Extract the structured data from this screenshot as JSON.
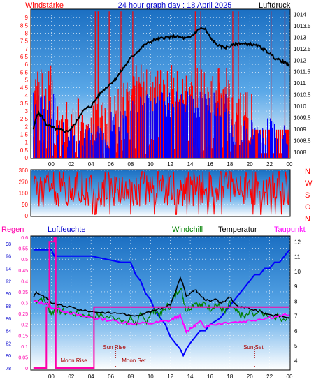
{
  "header": {
    "left_label": "Windstärke",
    "title": "24 hour graph day : 18 April 2025",
    "right_label": "Luftdruck"
  },
  "colors": {
    "wind": "#ff0000",
    "gust": "#0000ff",
    "pressure": "#000000",
    "rain": "#ff00aa",
    "humidity": "#0000ff",
    "windchill": "#008000",
    "temperature": "#000000",
    "dewpoint": "#ff00ff",
    "sky_top": "#1b6fc2",
    "sky_bottom": "#ffffff"
  },
  "chart_data": [
    {
      "type": "bar+line",
      "title": "24 hour graph day : 18 April 2025",
      "left_axis_label": "Windstärke",
      "right_axis_label": "Luftdruck",
      "x_ticks": [
        "00",
        "02",
        "04",
        "06",
        "08",
        "10",
        "12",
        "14",
        "16",
        "18",
        "20",
        "22",
        "00"
      ],
      "left_ticks": [
        "0",
        "0.5",
        "1",
        "1.5",
        "2",
        "2.5",
        "3",
        "3.5",
        "4",
        "4.5",
        "5",
        "5.5",
        "6",
        "6.5",
        "7",
        "7.5",
        "8",
        "8.5",
        "9"
      ],
      "right_ticks": [
        "1008",
        "1008.5",
        "1009",
        "1009.5",
        "1010",
        "1010.5",
        "1011",
        "1011.5",
        "1012",
        "1012.5",
        "1013",
        "1013.5",
        "1014"
      ],
      "ylim_left": [
        0,
        9.5
      ],
      "ylim_right": [
        1007.75,
        1014.2
      ],
      "pressure_x": [
        -1.8,
        -1.4,
        -1,
        -0.5,
        0,
        0.5,
        1,
        1.5,
        2,
        2.5,
        3,
        3.5,
        4,
        4.5,
        5,
        5.5,
        6,
        6.5,
        7,
        7.5,
        8,
        8.5,
        9,
        9.5,
        10,
        10.5,
        11,
        11.5,
        12,
        12.5,
        13,
        13.5,
        14,
        14.5,
        15,
        15.5,
        16,
        16.5,
        17,
        17.5,
        18,
        18.5,
        19,
        19.5,
        20,
        20.5,
        21,
        21.5,
        22,
        22.5,
        23,
        23.5,
        24
      ],
      "pressure_y": [
        1009.0,
        1009.7,
        1009.6,
        1009.2,
        1009.1,
        1009.0,
        1008.95,
        1008.9,
        1009.0,
        1009.3,
        1009.7,
        1009.9,
        1010.0,
        1010.3,
        1010.6,
        1010.8,
        1011.0,
        1011.2,
        1011.5,
        1011.8,
        1012.1,
        1012.3,
        1012.5,
        1012.7,
        1012.8,
        1012.9,
        1012.95,
        1013.0,
        1013.0,
        1013.05,
        1013.0,
        1012.95,
        1013.0,
        1013.2,
        1013.4,
        1013.35,
        1013.0,
        1012.75,
        1012.6,
        1012.55,
        1012.6,
        1012.7,
        1012.75,
        1012.7,
        1012.7,
        1012.65,
        1012.6,
        1012.45,
        1012.3,
        1012.1,
        1012.0,
        1011.9,
        1011.75
      ],
      "wind_seed": 11,
      "gust_seed": 23
    },
    {
      "type": "line",
      "right_axis_label": "N W S O N",
      "compass_labels": [
        "N",
        "W",
        "S",
        "O",
        "N"
      ],
      "left_ticks": [
        "0",
        "90",
        "180",
        "270",
        "360"
      ],
      "ylim": [
        0,
        360
      ],
      "direction_seed": 37
    },
    {
      "type": "line",
      "legend": [
        "Regen",
        "Luftfeuchte",
        "Windchill",
        "Temperatur",
        "Taupunkt"
      ],
      "rain_ticks": [
        "0",
        "0.05",
        "0.1",
        "0.15",
        "0.2",
        "0.25",
        "0.3",
        "0.35",
        "0.4",
        "0.45",
        "0.5",
        "0.55",
        "0.6"
      ],
      "humidity_ticks": [
        "78",
        "80",
        "82",
        "84",
        "86",
        "88",
        "90",
        "92",
        "94",
        "96",
        "98"
      ],
      "temperature_ticks": [
        "4",
        "5",
        "6",
        "7",
        "8",
        "9",
        "10",
        "11",
        "12"
      ],
      "x_ticks": [
        "00",
        "02",
        "04",
        "06",
        "08",
        "10",
        "12",
        "14",
        "16",
        "18",
        "20",
        "22",
        "00"
      ],
      "rain_ylim": [
        0,
        0.6
      ],
      "humidity_ylim": [
        78,
        99
      ],
      "temperature_ylim": [
        3.5,
        12.3
      ],
      "rain_x": [
        -1.8,
        -0.5,
        -0.5,
        -0.2,
        -0.2,
        0.3,
        0.3,
        0.45,
        0.45,
        1.2,
        1.2,
        3.7,
        3.7,
        4.3,
        4.3,
        24
      ],
      "rain_y": [
        0,
        0,
        0.28,
        0.28,
        0.58,
        0.58,
        0.6,
        0.6,
        0.0,
        0.0,
        0,
        0,
        0,
        0,
        0.28,
        0.28
      ],
      "humidity_x": [
        -1.8,
        0,
        0.3,
        4,
        7,
        8,
        8.5,
        9,
        9.5,
        10,
        10.5,
        11,
        11.5,
        12,
        12.5,
        13,
        13.3,
        13.6,
        14,
        14.5,
        15,
        15.5,
        16,
        17,
        17.5,
        18,
        18.5,
        19,
        19.5,
        20,
        20.5,
        21,
        21.5,
        22,
        22.5,
        23,
        23.5,
        24
      ],
      "humidity_y": [
        97,
        97,
        96,
        96,
        95,
        95,
        93,
        92,
        90,
        89,
        87,
        86,
        85,
        83,
        82,
        81,
        80,
        81,
        82,
        83,
        84,
        84,
        85,
        86,
        87,
        88,
        89,
        90,
        91,
        92,
        93,
        93,
        94,
        94,
        95,
        95,
        96,
        97
      ],
      "temperature_x": [
        -1.8,
        -1.5,
        -1,
        -0.5,
        0,
        1,
        2,
        3,
        4,
        5,
        6,
        7,
        8,
        9,
        10,
        11,
        12,
        12.5,
        13,
        13.3,
        13.6,
        14,
        14.5,
        15,
        15.5,
        16,
        16.5,
        17,
        17.5,
        18,
        18.5,
        19,
        19.5,
        20,
        21,
        22,
        23,
        24
      ],
      "temperature_y": [
        8.3,
        8.6,
        8.4,
        8.2,
        7.9,
        7.7,
        7.6,
        7.4,
        7.3,
        7.25,
        7.2,
        7.2,
        7.0,
        7.1,
        7.3,
        7.5,
        7.8,
        8.6,
        9.6,
        9.1,
        8.3,
        8.5,
        8.8,
        8.4,
        8.1,
        8.0,
        8.2,
        7.9,
        8.0,
        8.3,
        7.8,
        7.6,
        7.6,
        7.5,
        7.3,
        7.1,
        7.0,
        6.9
      ],
      "windchill_x": [
        -1.8,
        -1,
        -0.5,
        0,
        0.5,
        1,
        2,
        3,
        4,
        5,
        6,
        7,
        7.5,
        8,
        8.5,
        9,
        9.5,
        10,
        10.5,
        11,
        11.5,
        12,
        12.5,
        13,
        13.3,
        13.6,
        14,
        14.5,
        15,
        15.5,
        16,
        16.5,
        17,
        17.5,
        18,
        18.5,
        19,
        19.5,
        20,
        21,
        22,
        23,
        24
      ],
      "windchill_y": [
        8.0,
        8.2,
        7.9,
        7.2,
        7.5,
        7.3,
        7.2,
        7.1,
        7.0,
        7.0,
        6.9,
        6.9,
        6.4,
        6.9,
        6.5,
        7.0,
        6.6,
        7.2,
        7.4,
        7.0,
        7.6,
        7.7,
        8.4,
        9.0,
        8.2,
        7.4,
        7.6,
        8.0,
        7.7,
        7.8,
        7.5,
        7.8,
        7.6,
        7.2,
        7.8,
        7.3,
        7.1,
        6.9,
        7.2,
        7.2,
        7.1,
        6.9,
        6.8
      ],
      "dewpoint_x": [
        -1.8,
        -1,
        -0.5,
        0,
        1,
        2,
        3,
        4,
        5,
        6,
        7,
        8,
        9,
        10,
        11,
        12,
        12.5,
        13,
        13.3,
        13.6,
        14,
        14.5,
        15,
        15.5,
        16,
        17,
        18,
        19,
        20,
        21,
        22,
        23,
        24
      ],
      "dewpoint_y": [
        8.0,
        7.9,
        7.8,
        7.6,
        7.4,
        7.2,
        7.0,
        6.9,
        6.8,
        6.7,
        6.6,
        6.5,
        6.5,
        6.5,
        6.6,
        6.7,
        6.9,
        7.0,
        6.5,
        6.0,
        6.1,
        6.4,
        6.6,
        6.3,
        6.4,
        6.5,
        6.6,
        6.6,
        6.7,
        6.8,
        6.9,
        7.0,
        7.1
      ],
      "sun_labels": [
        "Sun Rise",
        "Sun Set"
      ],
      "sun_times": [
        6.5,
        20.5
      ],
      "moon_labels": [
        "Moon Rise",
        "Moon Set"
      ],
      "moon_times": [
        0.3,
        6.2
      ]
    }
  ]
}
